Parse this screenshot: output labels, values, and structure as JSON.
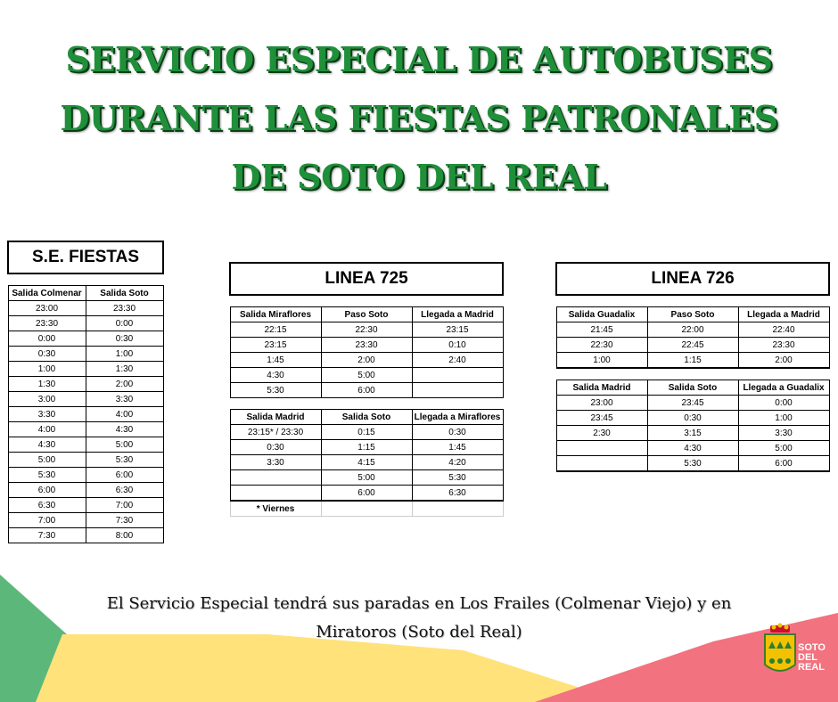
{
  "title": {
    "line1": "SERVICIO ESPECIAL DE AUTOBUSES",
    "line2": "DURANTE LAS FIESTAS PATRONALES",
    "line3": "DE SOTO DEL REAL"
  },
  "colors": {
    "title_green": "#1f8f3a",
    "deco_green": "#5cb87a",
    "deco_yellow": "#ffe27a",
    "deco_pink": "#f2727f"
  },
  "se_fiestas": {
    "title": "S.E. FIESTAS",
    "headers": [
      "Salida Colmenar",
      "Salida Soto"
    ],
    "rows": [
      [
        "23:00",
        "23:30"
      ],
      [
        "23:30",
        "0:00"
      ],
      [
        "0:00",
        "0:30"
      ],
      [
        "0:30",
        "1:00"
      ],
      [
        "1:00",
        "1:30"
      ],
      [
        "1:30",
        "2:00"
      ],
      [
        "3:00",
        "3:30"
      ],
      [
        "3:30",
        "4:00"
      ],
      [
        "4:00",
        "4:30"
      ],
      [
        "4:30",
        "5:00"
      ],
      [
        "5:00",
        "5:30"
      ],
      [
        "5:30",
        "6:00"
      ],
      [
        "6:00",
        "6:30"
      ],
      [
        "6:30",
        "7:00"
      ],
      [
        "7:00",
        "7:30"
      ],
      [
        "7:30",
        "8:00"
      ]
    ]
  },
  "linea725": {
    "title": "LINEA 725",
    "block1": {
      "headers": [
        "Salida Miraflores",
        "Paso Soto",
        "Llegada a Madrid"
      ],
      "rows": [
        [
          "22:15",
          "22:30",
          "23:15"
        ],
        [
          "23:15",
          "23:30",
          "0:10"
        ],
        [
          "1:45",
          "2:00",
          "2:40"
        ],
        [
          "4:30",
          "5:00",
          ""
        ],
        [
          "5:30",
          "6:00",
          ""
        ]
      ]
    },
    "block2": {
      "headers": [
        "Salida Madrid",
        "Salida Soto",
        "Llegada a Miraflores"
      ],
      "rows": [
        [
          "23:15* / 23:30",
          "0:15",
          "0:30"
        ],
        [
          "0:30",
          "1:15",
          "1:45"
        ],
        [
          "3:30",
          "4:15",
          "4:20"
        ],
        [
          "",
          "5:00",
          "5:30"
        ],
        [
          "",
          "6:00",
          "6:30"
        ]
      ]
    },
    "note": "* Viernes"
  },
  "linea726": {
    "title": "LINEA 726",
    "block1": {
      "headers": [
        "Salida Guadalix",
        "Paso Soto",
        "Llegada a Madrid"
      ],
      "rows": [
        [
          "21:45",
          "22:00",
          "22:40"
        ],
        [
          "22:30",
          "22:45",
          "23:30"
        ],
        [
          "1:00",
          "1:15",
          "2:00"
        ]
      ]
    },
    "block2": {
      "headers": [
        "Salida Madrid",
        "Salida Soto",
        "Llegada a Guadalix"
      ],
      "rows": [
        [
          "23:00",
          "23:45",
          "0:00"
        ],
        [
          "23:45",
          "0:30",
          "1:00"
        ],
        [
          "2:30",
          "3:15",
          "3:30"
        ],
        [
          "",
          "4:30",
          "5:00"
        ],
        [
          "",
          "5:30",
          "6:00"
        ]
      ]
    }
  },
  "footer": {
    "line1": "El Servicio Especial tendrá sus paradas en Los Frailes (Colmenar Viejo) y en",
    "line2": "Miratoros (Soto del Real)"
  },
  "logo": {
    "line1": "SOTO",
    "line2": "DEL",
    "line3": "REAL"
  }
}
